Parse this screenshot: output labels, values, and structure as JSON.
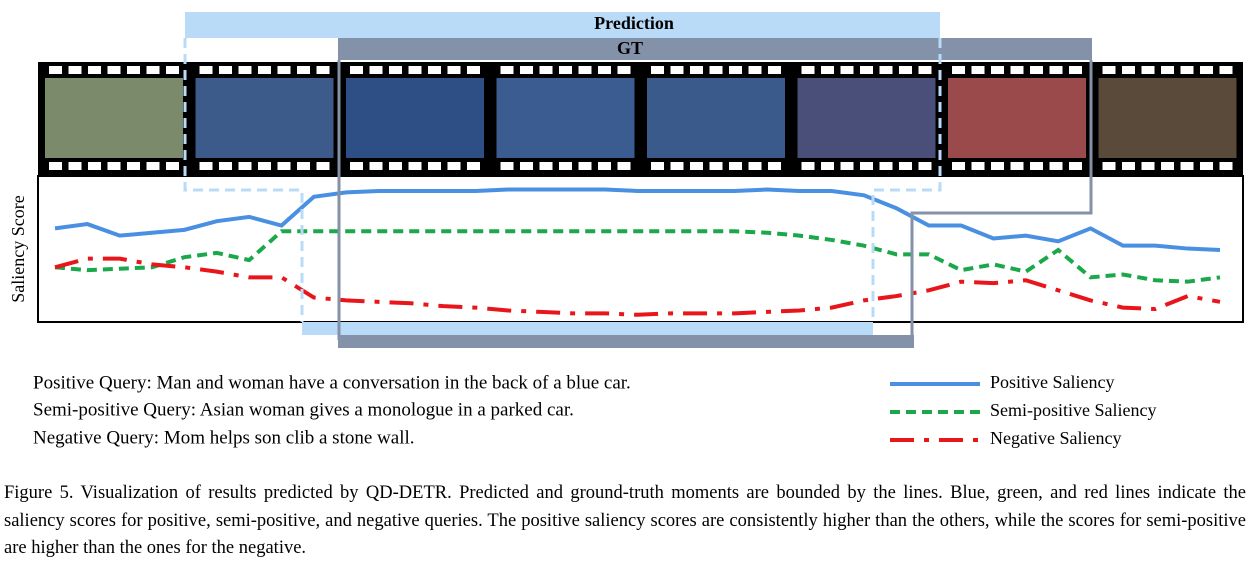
{
  "chart_data": {
    "type": "line",
    "ylabel": "Saliency Score",
    "prediction_label": "Prediction",
    "gt_label": "GT",
    "x": [
      0,
      1,
      2,
      3,
      4,
      5,
      6,
      7,
      8,
      9,
      10,
      11,
      12,
      13,
      14,
      15,
      16,
      17,
      18,
      19,
      20,
      21,
      22,
      23,
      24,
      25,
      26,
      27,
      28,
      29,
      30,
      31,
      32,
      33,
      34,
      35,
      36
    ],
    "xlim": [
      0,
      36
    ],
    "ylim": [
      0,
      1
    ],
    "series": [
      {
        "name": "Positive Saliency",
        "color": "#4a90e2",
        "style": "solid",
        "values": [
          0.65,
          0.68,
          0.6,
          0.62,
          0.64,
          0.7,
          0.73,
          0.67,
          0.87,
          0.9,
          0.91,
          0.91,
          0.91,
          0.91,
          0.92,
          0.92,
          0.92,
          0.92,
          0.91,
          0.91,
          0.91,
          0.91,
          0.92,
          0.91,
          0.91,
          0.88,
          0.79,
          0.67,
          0.67,
          0.58,
          0.6,
          0.56,
          0.65,
          0.53,
          0.53,
          0.51,
          0.5
        ]
      },
      {
        "name": "Semi-positive Saliency",
        "color": "#1aa84a",
        "style": "dashed",
        "values": [
          0.38,
          0.36,
          0.37,
          0.38,
          0.45,
          0.48,
          0.43,
          0.63,
          0.63,
          0.63,
          0.63,
          0.63,
          0.63,
          0.63,
          0.63,
          0.63,
          0.63,
          0.63,
          0.63,
          0.63,
          0.63,
          0.63,
          0.62,
          0.6,
          0.57,
          0.53,
          0.47,
          0.47,
          0.36,
          0.4,
          0.35,
          0.5,
          0.31,
          0.33,
          0.29,
          0.28,
          0.31
        ]
      },
      {
        "name": "Negative Saliency",
        "color": "#e8161b",
        "style": "dashdot",
        "values": [
          0.38,
          0.44,
          0.44,
          0.4,
          0.38,
          0.35,
          0.31,
          0.31,
          0.17,
          0.15,
          0.14,
          0.13,
          0.11,
          0.1,
          0.08,
          0.07,
          0.06,
          0.06,
          0.05,
          0.06,
          0.06,
          0.06,
          0.07,
          0.08,
          0.1,
          0.15,
          0.18,
          0.22,
          0.28,
          0.27,
          0.29,
          0.22,
          0.15,
          0.1,
          0.09,
          0.18,
          0.14
        ]
      }
    ],
    "queries": [
      "Positive Query: Man and woman have a conversation in the back of a blue car.",
      "Semi-positive Query: Asian woman gives a monologue in a parked car.",
      "Negative Query: Mom helps son clib a stone wall."
    ]
  },
  "caption": "Figure 5. Visualization of results predicted by QD-DETR. Predicted and ground-truth moments are bounded by the lines. Blue, green, and red lines indicate the saliency scores for positive, semi-positive, and negative queries. The positive saliency scores are consistently higher than the others, while the scores for semi-positive are higher than the ones for the negative."
}
